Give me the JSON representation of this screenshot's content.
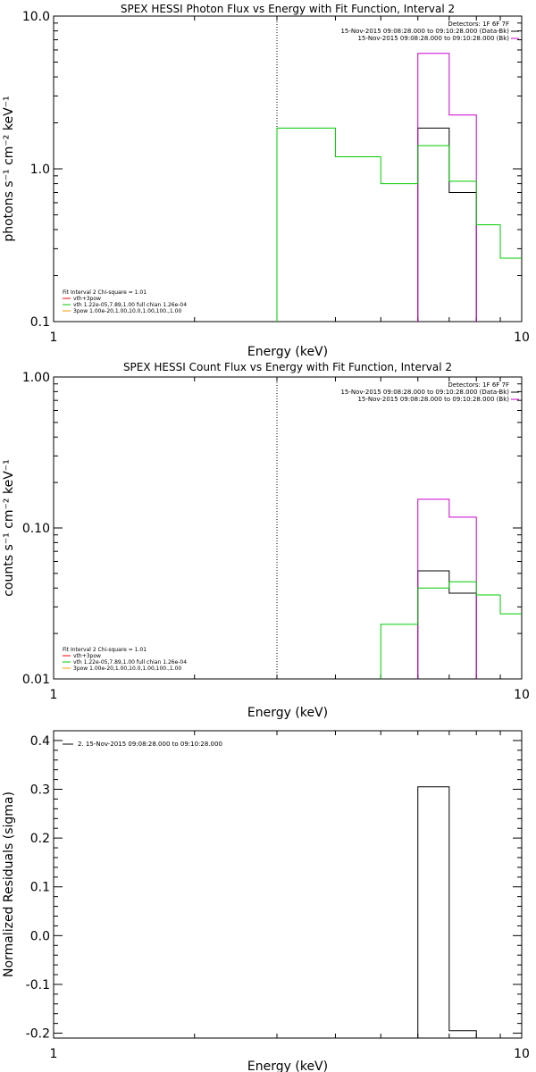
{
  "chart_data": [
    {
      "type": "line",
      "title": "SPEX HESSI Photon Flux vs Energy with Fit Function, Interval 2",
      "xlabel": "Energy (keV)",
      "ylabel": "photons s⁻¹ cm⁻² keV⁻¹",
      "xscale": "log",
      "yscale": "log",
      "xlim": [
        1,
        10
      ],
      "ylim": [
        0.1,
        10.0
      ],
      "xticks": [
        "1",
        "10"
      ],
      "yticks": [
        "0.1",
        "1.0",
        "10.0"
      ],
      "grid": false,
      "vline": 3,
      "legend_top_right": [
        {
          "text": "Detectors: 1F 6F 7F",
          "color": ""
        },
        {
          "text": "15-Nov-2015 09:08:28.000 to 09:10:28.000 (Data-Bk)",
          "color": "#000000"
        },
        {
          "text": "15-Nov-2015 09:08:28.000 to 09:10:28.000 (Bk)",
          "color": "#cc00cc"
        }
      ],
      "legend_bottom_left": [
        {
          "text": "Fit Interval 2   Chi-square = 1.01",
          "color": ""
        },
        {
          "text": "vth+3pow",
          "color": "#ff0000"
        },
        {
          "text": "vth 1.22e-05,7.89,1.00  full chian 1.26e-04",
          "color": "#00cc00"
        },
        {
          "text": "3pow 1.00e-20,1.00,10.0,1.00,100.,1.00",
          "color": "#ff9900"
        }
      ],
      "series": [
        {
          "name": "Data-Bk",
          "color": "#000000",
          "edges": [
            6,
            7,
            8
          ],
          "values": [
            1.85,
            0.7
          ]
        },
        {
          "name": "Bk",
          "color": "#cc00cc",
          "edges": [
            6,
            7,
            8
          ],
          "values": [
            5.7,
            2.25
          ]
        },
        {
          "name": "vth",
          "color": "#00cc00",
          "edges": [
            3,
            4,
            5,
            6,
            7,
            8,
            9,
            10
          ],
          "values": [
            1.85,
            1.2,
            0.8,
            1.42,
            0.83,
            0.43,
            0.26
          ]
        }
      ]
    },
    {
      "type": "line",
      "title": "SPEX HESSI Count Flux vs Energy with Fit Function, Interval 2",
      "xlabel": "Energy (keV)",
      "ylabel": "counts s⁻¹ cm⁻² keV⁻¹",
      "xscale": "log",
      "yscale": "log",
      "xlim": [
        1,
        10
      ],
      "ylim": [
        0.01,
        1.0
      ],
      "xticks": [
        "1",
        "10"
      ],
      "yticks": [
        "0.01",
        "0.10",
        "1.00"
      ],
      "grid": false,
      "vline": 3,
      "legend_top_right": [
        {
          "text": "Detectors: 1F 6F 7F",
          "color": ""
        },
        {
          "text": "15-Nov-2015 09:08:28.000 to 09:10:28.000 (Data-Bk)",
          "color": "#000000"
        },
        {
          "text": "15-Nov-2015 09:08:28.000 to 09:10:28.000 (Bk)",
          "color": "#cc00cc"
        }
      ],
      "legend_bottom_left": [
        {
          "text": "Fit Interval 2   Chi-square = 1.01",
          "color": ""
        },
        {
          "text": "vth+3pow",
          "color": "#ff0000"
        },
        {
          "text": "vth 1.22e-05,7.89,1.00  full chian 1.26e-04",
          "color": "#00cc00"
        },
        {
          "text": "3pow 1.00e-20,1.00,10.0,1.00,100.,1.00",
          "color": "#ff9900"
        }
      ],
      "series": [
        {
          "name": "Data-Bk",
          "color": "#000000",
          "edges": [
            6,
            7,
            8
          ],
          "values": [
            0.052,
            0.037
          ]
        },
        {
          "name": "Bk",
          "color": "#cc00cc",
          "edges": [
            6,
            7,
            8
          ],
          "values": [
            0.155,
            0.118
          ]
        },
        {
          "name": "vth",
          "color": "#00cc00",
          "edges": [
            5,
            6,
            7,
            8,
            9,
            10
          ],
          "values": [
            0.023,
            0.04,
            0.044,
            0.036,
            0.027
          ]
        }
      ]
    },
    {
      "type": "line",
      "title": "",
      "xlabel": "Energy (keV)",
      "ylabel": "Normalized Residuals (sigma)",
      "xscale": "log",
      "yscale": "linear",
      "xlim": [
        1,
        10
      ],
      "ylim": [
        -0.21,
        0.42
      ],
      "xticks": [
        "1",
        "10"
      ],
      "yticks": [
        "-0.2",
        "-0.1",
        "0.0",
        "0.1",
        "0.2",
        "0.3",
        "0.4"
      ],
      "grid": false,
      "legend_top_left": [
        {
          "text": "2. 15-Nov-2015 09:08:28.000 to 09:10:28.000",
          "color": "#000000"
        }
      ],
      "series": [
        {
          "name": "",
          "color": "#000000",
          "edges": [
            6,
            7,
            8
          ],
          "values": [
            0.305,
            -0.195
          ]
        }
      ]
    }
  ]
}
